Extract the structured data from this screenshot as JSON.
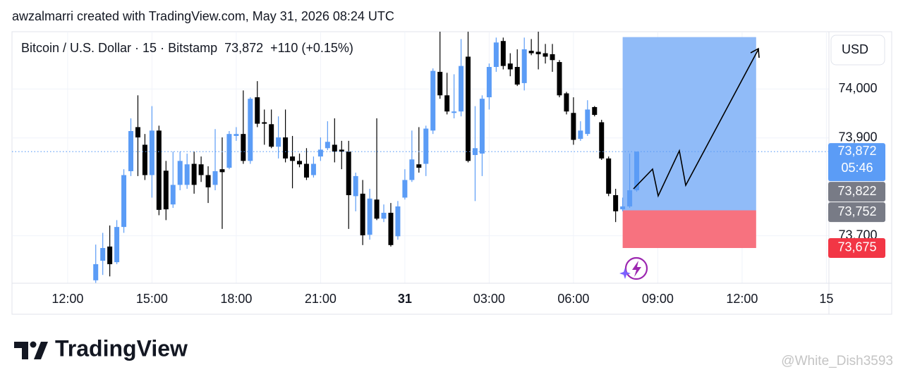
{
  "header": "awzalmarri created with TradingView.com, May 31, 2026 08:24 UTC",
  "chart_data": {
    "type": "candlestick",
    "legend": {
      "symbol": "Bitcoin / U.S. Dollar · 15 · Bitstamp",
      "price": "73,872",
      "change": "+110 (+0.15%)"
    },
    "currency": "USD",
    "x": [
      13,
      13.25,
      13.5,
      13.75,
      14,
      14.25,
      14.5,
      14.75,
      15,
      15.25,
      15.5,
      15.75,
      16,
      16.25,
      16.5,
      16.75,
      17,
      17.25,
      17.5,
      17.75,
      18,
      18.25,
      18.5,
      18.75,
      19,
      19.25,
      19.5,
      19.75,
      20,
      20.25,
      20.5,
      20.75,
      21,
      21.25,
      21.5,
      21.75,
      22,
      22.25,
      22.5,
      22.75,
      23,
      23.25,
      23.5,
      23.75,
      24,
      24.25,
      24.5,
      24.75,
      25,
      25.25,
      25.5,
      25.75,
      26,
      26.25,
      26.5,
      26.75,
      27,
      27.25,
      27.5,
      27.75,
      28,
      28.25,
      28.5,
      28.75,
      29,
      29.25,
      29.5,
      29.75,
      30,
      30.25,
      30.5,
      30.75,
      31,
      31.25,
      31.5,
      31.75,
      32,
      32.25
    ],
    "open": [
      73609,
      73649,
      73678,
      73646,
      73718,
      73832,
      73922,
      73886,
      73824,
      73915,
      73833,
      73764,
      73804,
      73804,
      73847,
      73846,
      73824,
      73804,
      73836,
      73839,
      73904,
      73908,
      73853,
      73983,
      73932,
      73928,
      73882,
      73901,
      73862,
      73853,
      73847,
      73824,
      73862,
      73879,
      73886,
      73876,
      73872,
      73781,
      73786,
      73702,
      73774,
      73735,
      73747,
      73699,
      73778,
      73814,
      73846,
      73847,
      73915,
      74035,
      73987,
      73951,
      73954,
      74066,
      73865,
      73868,
      73983,
      74045,
      74098,
      74052,
      74045,
      74012,
      74078,
      74076,
      74073,
      74071,
      74055,
      73991,
      73951,
      73898,
      73908,
      73963,
      73932,
      73858,
      73783,
      73754,
      73760,
      73793
    ],
    "high": [
      73682,
      73706,
      73721,
      73732,
      73836,
      73940,
      73987,
      73908,
      73965,
      73925,
      73853,
      73872,
      73872,
      73868,
      73872,
      73862,
      73842,
      73918,
      73901,
      73914,
      73922,
      73997,
      73983,
      74016,
      73958,
      73958,
      73944,
      73958,
      73904,
      73868,
      73879,
      73862,
      73901,
      73934,
      73940,
      73894,
      73894,
      73829,
      73814,
      73796,
      73940,
      73764,
      73767,
      73771,
      73836,
      73915,
      73922,
      73925,
      74042,
      74117,
      74033,
      74030,
      74102,
      74117,
      73965,
      73987,
      74052,
      74105,
      74105,
      74073,
      74081,
      74105,
      74102,
      74117,
      74092,
      74092,
      74059,
      73994,
      73983,
      73934,
      73977,
      73965,
      73937,
      73862,
      73796,
      73778,
      73868,
      73872
    ],
    "low": [
      73603,
      73620,
      73617,
      73642,
      73706,
      73822,
      73822,
      73814,
      73778,
      73742,
      73732,
      73757,
      73793,
      73796,
      73786,
      73810,
      73767,
      73793,
      73714,
      73836,
      73894,
      73847,
      73847,
      73922,
      73886,
      73879,
      73858,
      73850,
      73797,
      73840,
      73814,
      73819,
      73853,
      73875,
      73850,
      73836,
      73714,
      73750,
      73681,
      73692,
      73732,
      73728,
      73678,
      73692,
      73774,
      73810,
      73829,
      73822,
      73908,
      73980,
      73948,
      73940,
      73944,
      73850,
      73771,
      73822,
      73958,
      74035,
      74040,
      74026,
      74006,
      73997,
      74069,
      74040,
      74052,
      74035,
      73983,
      73948,
      73886,
      73894,
      73904,
      73944,
      73855,
      73781,
      73728,
      73750,
      73757,
      73790
    ],
    "close": [
      73642,
      73675,
      73642,
      73718,
      73824,
      73914,
      73901,
      73824,
      73915,
      73753,
      73754,
      73804,
      73853,
      73846,
      73804,
      73824,
      73799,
      73832,
      73830,
      73908,
      73908,
      73853,
      73980,
      73929,
      73929,
      73882,
      73901,
      73858,
      73853,
      73846,
      73819,
      73847,
      73876,
      73892,
      73872,
      73872,
      73783,
      73822,
      73701,
      73776,
      73735,
      73747,
      73681,
      73760,
      73814,
      73856,
      73839,
      73919,
      74037,
      73987,
      73954,
      73954,
      74047,
      73853,
      73879,
      73980,
      74045,
      74095,
      74047,
      74040,
      74009,
      74081,
      74073,
      74071,
      74066,
      74059,
      73987,
      73954,
      73896,
      73915,
      73958,
      73947,
      73858,
      73786,
      73750,
      73760,
      73793,
      73872
    ],
    "up_color": "#5b9cf6",
    "down_color": "#000000",
    "xlim": [
      10.02,
      39.09
    ],
    "xticks": [
      {
        "value": 12,
        "label": "12:00"
      },
      {
        "value": 15,
        "label": "15:00"
      },
      {
        "value": 18,
        "label": "18:00"
      },
      {
        "value": 21,
        "label": "21:00"
      },
      {
        "value": 24,
        "label": "31",
        "bold": true
      },
      {
        "value": 27,
        "label": "03:00"
      },
      {
        "value": 30,
        "label": "06:00"
      },
      {
        "value": 33,
        "label": "09:00"
      },
      {
        "value": 36,
        "label": "12:00"
      },
      {
        "value": 39,
        "label": "15"
      }
    ],
    "ylim": [
      73603,
      74117
    ],
    "yticks": [
      {
        "value": 74000,
        "label": "74,000"
      },
      {
        "value": 73900,
        "label": "73,900"
      },
      {
        "value": 73700,
        "label": "73,700"
      }
    ],
    "grid": true,
    "current_price": {
      "value": 73872,
      "label": "73,872",
      "countdown": "05:46",
      "color": "#5b9cf6"
    },
    "price_tags": [
      {
        "value": 73822,
        "label": "73,822",
        "color": "#787b86"
      },
      {
        "value": 73752,
        "label": "73,752",
        "color": "#787b86"
      },
      {
        "value": 73675,
        "label": "73,675",
        "color": "#f23645"
      }
    ],
    "position": {
      "x": [
        31.75,
        36.5
      ],
      "target": 74106,
      "entry": 73752,
      "stop": 73675,
      "profit_color": "#90bbf8",
      "loss_color": "#f7727f"
    }
  },
  "logo": "TradingView",
  "watermark": "@White_Dish3593"
}
